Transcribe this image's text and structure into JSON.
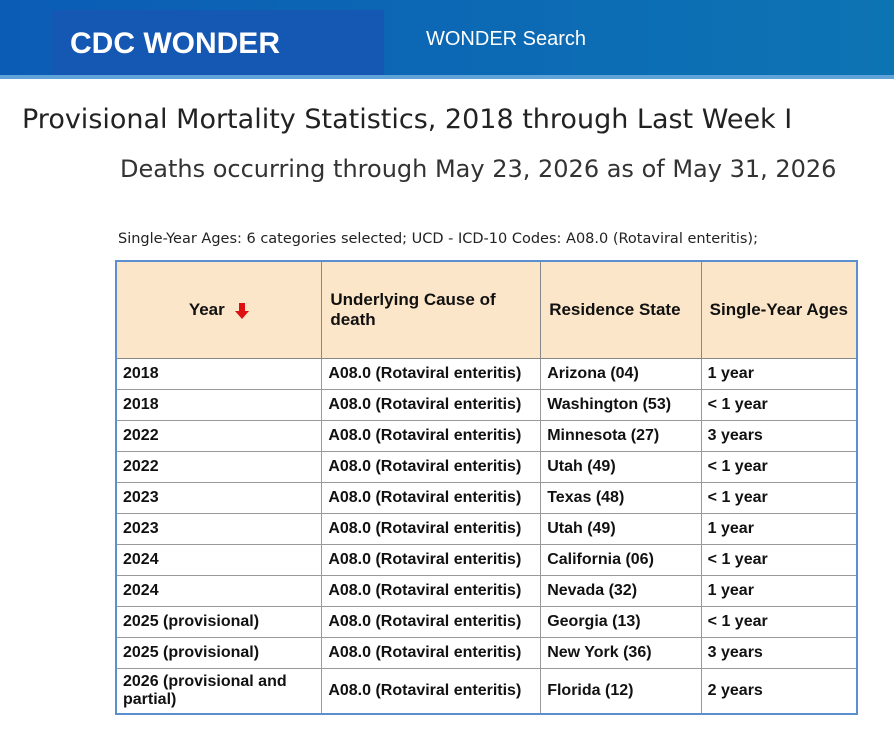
{
  "header": {
    "title": "CDC WONDER",
    "nav": "WONDER Search"
  },
  "title": "Provisional Mortality Statistics, 2018 through Last Week I",
  "subtitle": "Deaths occurring through May 23, 2026 as of May 31, 2026",
  "caption": "Single-Year Ages: 6 categories selected; UCD - ICD-10 Codes: A08.0 (Rotaviral enteritis);",
  "table": {
    "columns": [
      "Year",
      "Underlying Cause of death",
      "Residence State",
      "Single-Year Ages"
    ],
    "rows": [
      [
        "2018",
        "A08.0 (Rotaviral enteritis)",
        "Arizona (04)",
        "1 year"
      ],
      [
        "2018",
        "A08.0 (Rotaviral enteritis)",
        "Washington (53)",
        "< 1 year"
      ],
      [
        "2022",
        "A08.0 (Rotaviral enteritis)",
        "Minnesota (27)",
        "3 years"
      ],
      [
        "2022",
        "A08.0 (Rotaviral enteritis)",
        "Utah (49)",
        "< 1 year"
      ],
      [
        "2023",
        "A08.0 (Rotaviral enteritis)",
        "Texas (48)",
        "< 1 year"
      ],
      [
        "2023",
        "A08.0 (Rotaviral enteritis)",
        "Utah (49)",
        "1 year"
      ],
      [
        "2024",
        "A08.0 (Rotaviral enteritis)",
        "California (06)",
        "< 1 year"
      ],
      [
        "2024",
        "A08.0 (Rotaviral enteritis)",
        "Nevada (32)",
        "1 year"
      ],
      [
        "2025 (provisional)",
        "A08.0 (Rotaviral enteritis)",
        "Georgia (13)",
        "< 1 year"
      ],
      [
        "2025 (provisional)",
        "A08.0 (Rotaviral enteritis)",
        "New York (36)",
        "3 years"
      ],
      [
        "2026 (provisional and partial)",
        "A08.0 (Rotaviral enteritis)",
        "Florida (12)",
        "2 years"
      ]
    ]
  }
}
